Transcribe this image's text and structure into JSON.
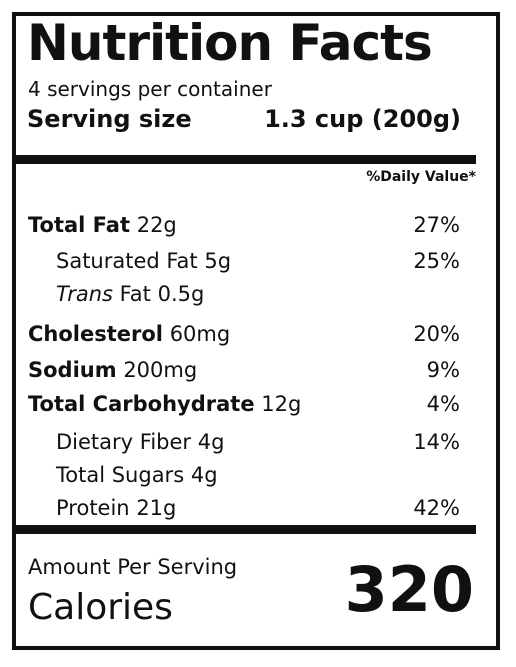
{
  "title": "Nutrition Facts",
  "servings_per_container": "4 servings per container",
  "serving_size": {
    "label": "Serving size",
    "value": "1.3 cup (200g)"
  },
  "daily_value_header": "%Daily Value*",
  "nutrients": {
    "total_fat": {
      "name": "Total Fat",
      "amount": "22g",
      "dv": "27%"
    },
    "saturated_fat": {
      "name": "Saturated Fat",
      "amount": "5g",
      "dv": "25%"
    },
    "trans_fat": {
      "name_italic": "Trans",
      "name": "Fat",
      "amount": "0.5g",
      "dv": ""
    },
    "cholesterol": {
      "name": "Cholesterol",
      "amount": "60mg",
      "dv": "20%"
    },
    "sodium": {
      "name": "Sodium",
      "amount": "200mg",
      "dv": "9%"
    },
    "total_carbohydrate": {
      "name": "Total Carbohydrate",
      "amount": "12g",
      "dv": "4%"
    },
    "dietary_fiber": {
      "name": "Dietary Fiber",
      "amount": "4g",
      "dv": "14%"
    },
    "total_sugars": {
      "name": "Total Sugars",
      "amount": "4g",
      "dv": ""
    },
    "protein": {
      "name": "Protein",
      "amount": "21g",
      "dv": "42%"
    }
  },
  "calories": {
    "amount_label": "Amount Per Serving",
    "label": "Calories",
    "value": "320"
  }
}
